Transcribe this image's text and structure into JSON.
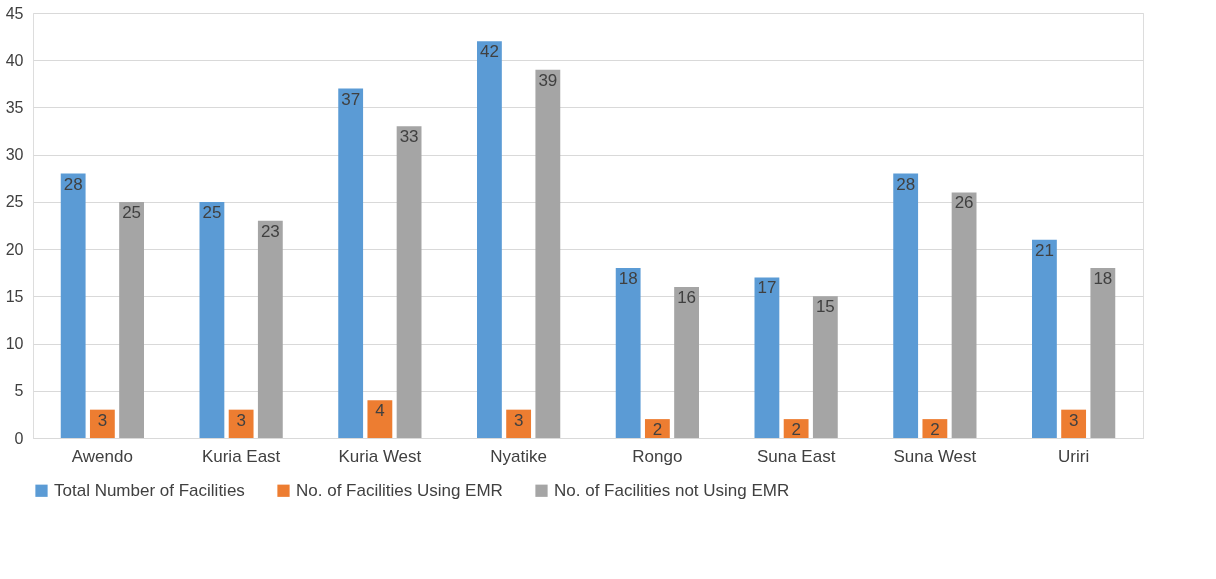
{
  "chart_data": {
    "type": "bar",
    "categories": [
      "Awendo",
      "Kuria East",
      "Kuria West",
      "Nyatike",
      "Rongo",
      "Suna East",
      "Suna West",
      "Uriri"
    ],
    "series": [
      {
        "name": "Total Number of Facilities",
        "color": "#5b9bd5",
        "values": [
          28,
          25,
          37,
          42,
          18,
          17,
          28,
          21
        ]
      },
      {
        "name": "No. of Facilities Using EMR",
        "color": "#ed7d31",
        "values": [
          3,
          3,
          4,
          3,
          2,
          2,
          2,
          3
        ]
      },
      {
        "name": "No. of Facilities not Using EMR",
        "color": "#a5a5a5",
        "values": [
          25,
          23,
          33,
          39,
          16,
          15,
          26,
          18
        ]
      }
    ],
    "ylim": [
      0,
      45
    ],
    "yticks": [
      0,
      5,
      10,
      15,
      20,
      25,
      30,
      35,
      40,
      45
    ],
    "grid": "y",
    "legend": "bottom",
    "data_labels": true
  }
}
